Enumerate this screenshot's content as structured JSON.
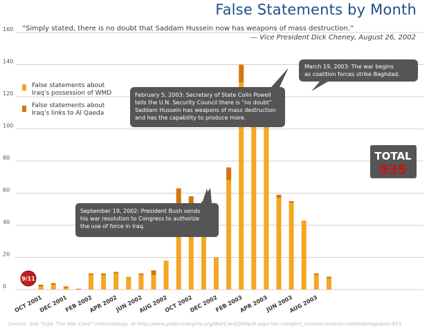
{
  "title": "False Statements by Month",
  "quote": {
    "text": "“Simply stated, there is no doubt that Saddam Hussein now has weapons of mass destruction.”",
    "attribution": "— Vice President Dick Cheney, August 26, 2002"
  },
  "legend": [
    {
      "label_line1": "False statements about",
      "label_line2": "Iraq’s possession of WMD"
    },
    {
      "label_line1": "False statements about",
      "label_line2": "Iraq’s links to Al Qaeda"
    }
  ],
  "total": {
    "label": "TOTAL",
    "value": "935"
  },
  "badge": {
    "label": "9/11"
  },
  "callouts": [
    {
      "name": "callout-bush",
      "lines": [
        "September 19, 2002: President Bush sends",
        "his war resolution to Congress to authorize",
        "the use of force in Iraq."
      ]
    },
    {
      "name": "callout-powell",
      "lines": [
        "February 5, 2003: Secretary of State Colin Powell",
        "tells the U.N. Security Council there is “no doubt”",
        "Saddam Hussein has weapons of mass destruction",
        "and has the capability to produce more."
      ]
    },
    {
      "name": "callout-march",
      "lines": [
        "March 19, 2003: The war begins",
        "as coalition forces strike Baghdad."
      ]
    }
  ],
  "source": "Source: See “Iraq: The War Card” methodology, at http://www.publicintegrity.org/WarCard/Default.aspx?src=project_home&context=methodology&id=953",
  "colors": {
    "wmd": "#f5a623",
    "alqaeda": "#d4770e",
    "grid": "#cfcfcf",
    "title": "#1e4f8a",
    "callout": "#555555",
    "total_box": "#555555",
    "total_value": "#c81414",
    "badge": "#c01f1f"
  },
  "chart_data": {
    "type": "bar",
    "stacked": true,
    "categories": [
      "Sep 2001",
      "OCT 2001",
      "Nov 2001",
      "DEC 2001",
      "Jan 2002",
      "FEB 2002",
      "Mar 2002",
      "APR 2002",
      "May 2002",
      "JUN 2002",
      "Jul 2002",
      "AUG 2002",
      "Sep 2002",
      "OCT 2002",
      "Nov 2002",
      "DEC 2002",
      "Jan 2003",
      "FEB 2003",
      "Mar 2003",
      "APR 2003",
      "May 2003",
      "JUN 2003",
      "Jul 2003",
      "AUG 2003",
      "Sep 2003"
    ],
    "tick_labels": [
      "OCT 2001",
      "DEC 2001",
      "FEB 2002",
      "APR 2002",
      "JUN 2002",
      "AUG 2002",
      "OCT 2002",
      "DEC 2002",
      "FEB 2003",
      "APR 2003",
      "JUN 2003",
      "AUG 2003"
    ],
    "series": [
      {
        "key": "wmd",
        "values": [
          0,
          2,
          3,
          1,
          0,
          9,
          9,
          10,
          8,
          9,
          9,
          18,
          50,
          53,
          43,
          20,
          68,
          129,
          120,
          108,
          57,
          54,
          43,
          9,
          7
        ]
      },
      {
        "key": "alqaeda",
        "values": [
          0,
          1,
          1,
          1,
          0.5,
          1,
          1,
          1,
          0,
          1,
          3,
          0,
          13,
          5,
          12,
          0,
          8,
          11,
          5,
          0,
          2,
          1,
          0,
          1,
          1
        ]
      }
    ],
    "ylim": [
      0,
      160
    ],
    "yticks": [
      0,
      20,
      40,
      60,
      80,
      100,
      120,
      140,
      160
    ],
    "grid": true,
    "legend_position": "left"
  }
}
